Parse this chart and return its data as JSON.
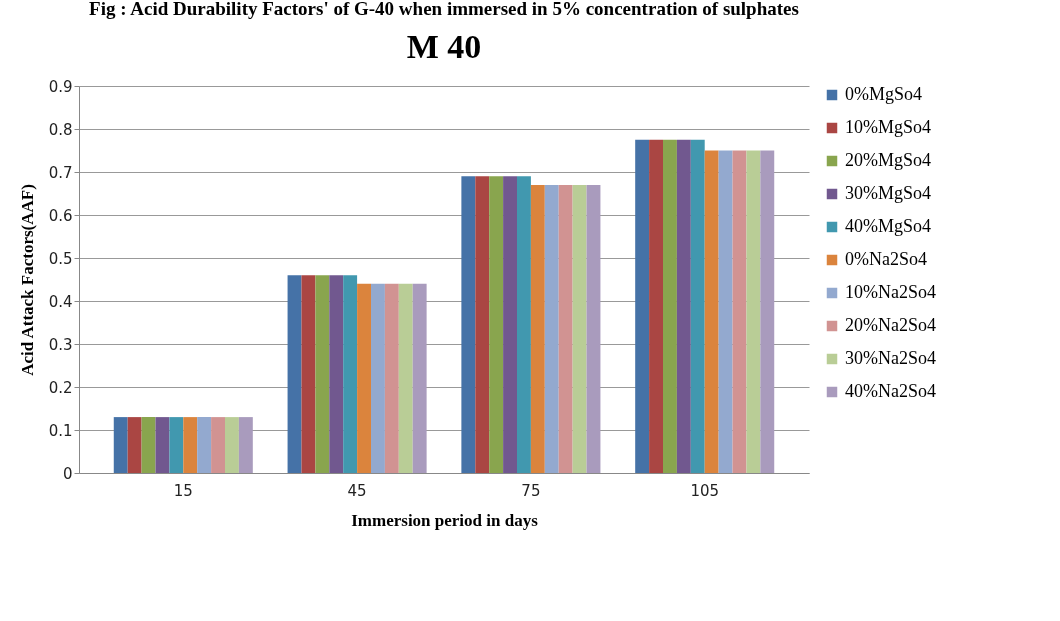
{
  "chart_data": {
    "type": "bar",
    "title": "Fig : Acid Durability Factors' of G-40 when immersed in 5% concentration of sulphates",
    "subtitle": "M 40",
    "xlabel": "Immersion period in days",
    "ylabel": "Acid Attack Factors(AAF)",
    "categories": [
      "15",
      "45",
      "75",
      "105"
    ],
    "ylim": [
      0,
      0.9
    ],
    "yticks": [
      0,
      0.1,
      0.2,
      0.3,
      0.4,
      0.5,
      0.6,
      0.7,
      0.8,
      0.9
    ],
    "grid": "y",
    "legend": "right",
    "series": [
      {
        "name": "0%MgSo4",
        "color": "#4572a7",
        "values": [
          0.13,
          0.46,
          0.69,
          0.775
        ]
      },
      {
        "name": "10%MgSo4",
        "color": "#aa4643",
        "values": [
          0.13,
          0.46,
          0.69,
          0.775
        ]
      },
      {
        "name": "20%MgSo4",
        "color": "#89a54e",
        "values": [
          0.13,
          0.46,
          0.69,
          0.775
        ]
      },
      {
        "name": "30%MgSo4",
        "color": "#71588f",
        "values": [
          0.13,
          0.46,
          0.69,
          0.775
        ]
      },
      {
        "name": "40%MgSo4",
        "color": "#4198af",
        "values": [
          0.13,
          0.46,
          0.69,
          0.775
        ]
      },
      {
        "name": "0%Na2So4",
        "color": "#db843d",
        "values": [
          0.13,
          0.44,
          0.67,
          0.75
        ]
      },
      {
        "name": "10%Na2So4",
        "color": "#93a9cf",
        "values": [
          0.13,
          0.44,
          0.67,
          0.75
        ]
      },
      {
        "name": "20%Na2So4",
        "color": "#d19392",
        "values": [
          0.13,
          0.44,
          0.67,
          0.75
        ]
      },
      {
        "name": "30%Na2So4",
        "color": "#b9cd96",
        "values": [
          0.13,
          0.44,
          0.67,
          0.75
        ]
      },
      {
        "name": "40%Na2So4",
        "color": "#a99bbd",
        "values": [
          0.13,
          0.44,
          0.67,
          0.75
        ]
      }
    ]
  }
}
